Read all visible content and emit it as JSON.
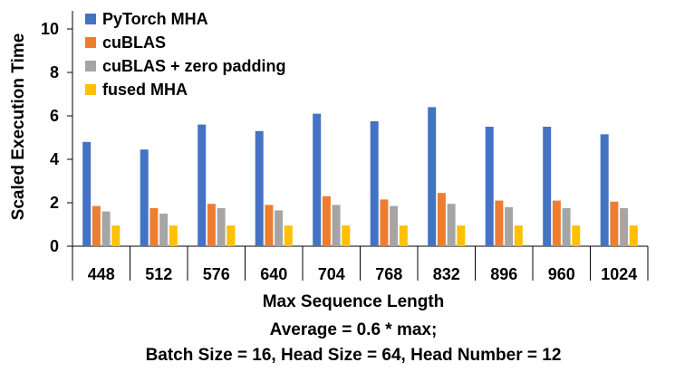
{
  "chart_data": {
    "type": "bar",
    "categories": [
      "448",
      "512",
      "576",
      "640",
      "704",
      "768",
      "832",
      "896",
      "960",
      "1024"
    ],
    "series": [
      {
        "name": "PyTorch MHA",
        "color": "#4472C4",
        "values": [
          4.8,
          4.45,
          5.6,
          5.3,
          6.1,
          5.75,
          6.4,
          5.5,
          5.5,
          5.15
        ]
      },
      {
        "name": "cuBLAS",
        "color": "#ED7D31",
        "values": [
          1.85,
          1.75,
          1.95,
          1.9,
          2.3,
          2.15,
          2.45,
          2.1,
          2.1,
          2.05
        ]
      },
      {
        "name": "cuBLAS + zero padding",
        "color": "#A5A5A5",
        "values": [
          1.6,
          1.5,
          1.75,
          1.65,
          1.9,
          1.85,
          1.95,
          1.8,
          1.75,
          1.75
        ]
      },
      {
        "name": "fused MHA",
        "color": "#FFC000",
        "values": [
          0.95,
          0.95,
          0.95,
          0.95,
          0.95,
          0.95,
          0.95,
          0.95,
          0.95,
          0.95
        ]
      }
    ],
    "xlabel": "Max Sequence Length",
    "ylabel": "Scaled Execution Time",
    "ylim": [
      0,
      11
    ],
    "yticks": [
      0,
      2,
      4,
      6,
      8,
      10
    ],
    "grid": false,
    "legend": "top-left",
    "annotations": [
      "Average = 0.6 * max;",
      "Batch Size = 16, Head Size = 64, Head Number = 12"
    ]
  }
}
